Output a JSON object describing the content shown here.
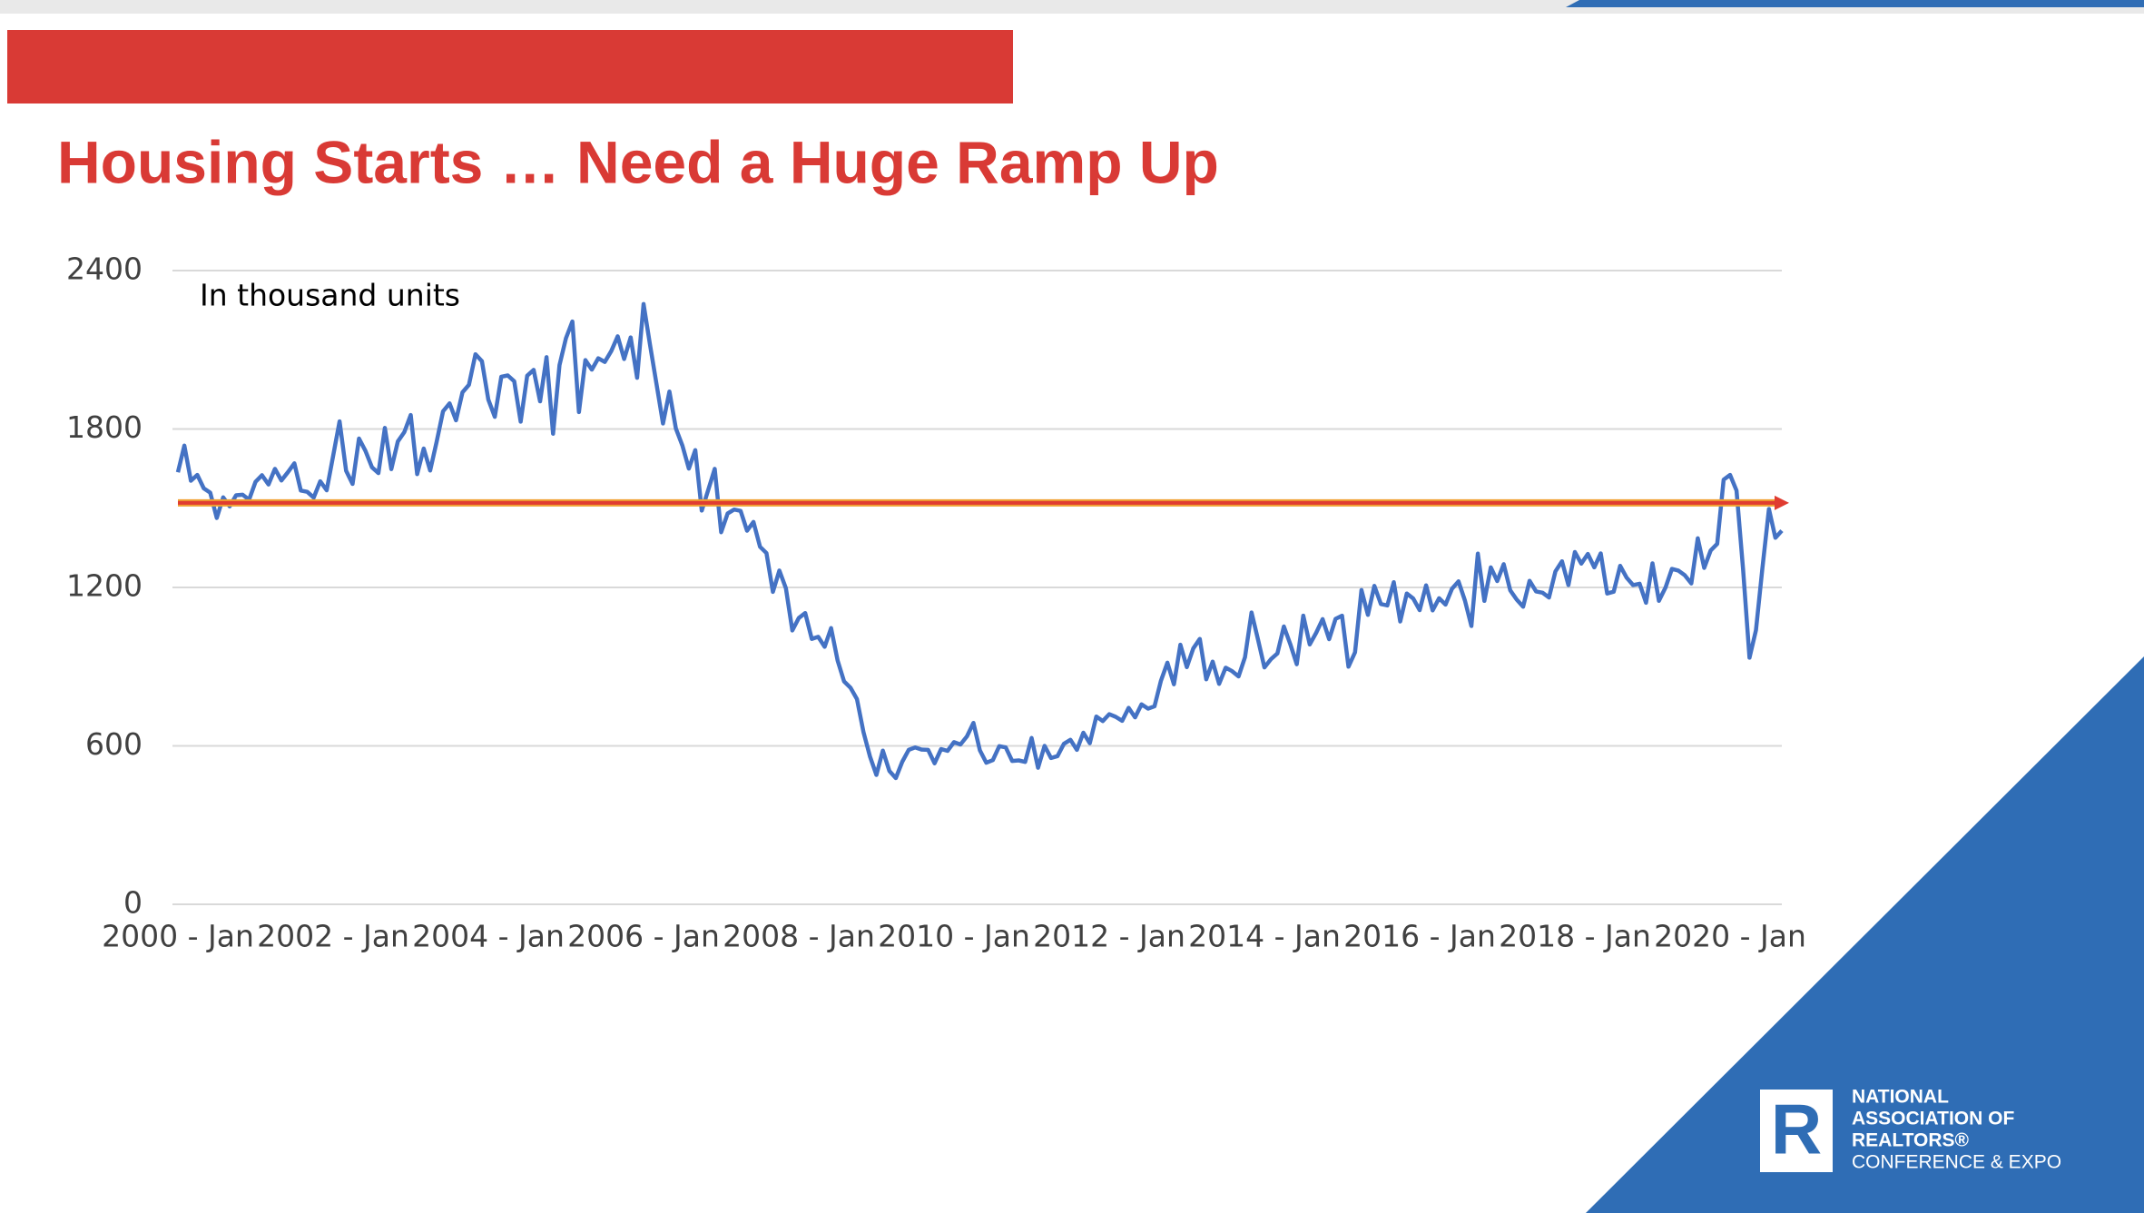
{
  "slide_title": "Housing Starts … Need a Huge Ramp Up",
  "chart_data": {
    "type": "line",
    "annotation": "In thousand units",
    "categories": [
      "2000 - Jan",
      null,
      null,
      null,
      null,
      null,
      null,
      null,
      null,
      null,
      null,
      null,
      null,
      null,
      null,
      null,
      null,
      null,
      null,
      null,
      null,
      null,
      null,
      null,
      "2002 - Jan",
      null,
      null,
      null,
      null,
      null,
      null,
      null,
      null,
      null,
      null,
      null,
      null,
      null,
      null,
      null,
      null,
      null,
      null,
      null,
      null,
      null,
      null,
      null,
      "2004 - Jan",
      null,
      null,
      null,
      null,
      null,
      null,
      null,
      null,
      null,
      null,
      null,
      null,
      null,
      null,
      null,
      null,
      null,
      null,
      null,
      null,
      null,
      null,
      null,
      "2006 - Jan",
      null,
      null,
      null,
      null,
      null,
      null,
      null,
      null,
      null,
      null,
      null,
      null,
      null,
      null,
      null,
      null,
      null,
      null,
      null,
      null,
      null,
      null,
      null,
      "2008 - Jan",
      null,
      null,
      null,
      null,
      null,
      null,
      null,
      null,
      null,
      null,
      null,
      null,
      null,
      null,
      null,
      null,
      null,
      null,
      null,
      null,
      null,
      null,
      null,
      "2010 - Jan",
      null,
      null,
      null,
      null,
      null,
      null,
      null,
      null,
      null,
      null,
      null,
      null,
      null,
      null,
      null,
      null,
      null,
      null,
      null,
      null,
      null,
      null,
      null,
      "2012 - Jan",
      null,
      null,
      null,
      null,
      null,
      null,
      null,
      null,
      null,
      null,
      null,
      null,
      null,
      null,
      null,
      null,
      null,
      null,
      null,
      null,
      null,
      null,
      null,
      "2014 - Jan",
      null,
      null,
      null,
      null,
      null,
      null,
      null,
      null,
      null,
      null,
      null,
      null,
      null,
      null,
      null,
      null,
      null,
      null,
      null,
      null,
      null,
      null,
      null,
      "2016 - Jan",
      null,
      null,
      null,
      null,
      null,
      null,
      null,
      null,
      null,
      null,
      null,
      null,
      null,
      null,
      null,
      null,
      null,
      null,
      null,
      null,
      null,
      null,
      null,
      "2018 - Jan",
      null,
      null,
      null,
      null,
      null,
      null,
      null,
      null,
      null,
      null,
      null,
      null,
      null,
      null,
      null,
      null,
      null,
      null,
      null,
      null,
      null,
      null,
      null,
      "2020 - Jan",
      null,
      null,
      null,
      null,
      null,
      null,
      null,
      null
    ],
    "series": [
      {
        "color": "#4472c4",
        "values": [
          1636,
          1737,
          1604,
          1626,
          1575,
          1559,
          1463,
          1541,
          1507,
          1549,
          1551,
          1532,
          1600,
          1625,
          1590,
          1649,
          1605,
          1636,
          1670,
          1567,
          1562,
          1540,
          1602,
          1568,
          1698,
          1829,
          1642,
          1592,
          1764,
          1717,
          1655,
          1633,
          1804,
          1648,
          1753,
          1788,
          1853,
          1629,
          1726,
          1643,
          1751,
          1867,
          1897,
          1833,
          1939,
          1967,
          2083,
          2057,
          1911,
          1846,
          1998,
          2003,
          1981,
          1828,
          2002,
          2024,
          1905,
          2072,
          1782,
          2042,
          2144,
          2207,
          1864,
          2061,
          2025,
          2068,
          2054,
          2095,
          2151,
          2065,
          2147,
          1994,
          2273,
          2119,
          1969,
          1821,
          1942,
          1802,
          1737,
          1650,
          1720,
          1491,
          1570,
          1649,
          1409,
          1480,
          1495,
          1490,
          1415,
          1448,
          1354,
          1330,
          1183,
          1264,
          1197,
          1037,
          1084,
          1103,
          1005,
          1013,
          975,
          1046,
          923,
          844,
          820,
          777,
          652,
          560,
          490,
          582,
          505,
          478,
          540,
          585,
          594,
          586,
          585,
          534,
          588,
          581,
          614,
          605,
          636,
          687,
          583,
          536,
          546,
          599,
          594,
          543,
          545,
          539,
          630,
          517,
          600,
          554,
          561,
          608,
          623,
          585,
          650,
          610,
          711,
          694,
          720,
          710,
          695,
          744,
          708,
          757,
          741,
          750,
          847,
          915,
          833,
          983,
          898,
          969,
          1005,
          852,
          919,
          835,
          896,
          883,
          863,
          936,
          1105,
          1003,
          897,
          928,
          950,
          1052,
          985,
          909,
          1093,
          984,
          1028,
          1080,
          1004,
          1081,
          1093,
          900,
          954,
          1190,
          1096,
          1206,
          1137,
          1132,
          1220,
          1071,
          1177,
          1158,
          1114,
          1208,
          1113,
          1159,
          1135,
          1195,
          1223,
          1150,
          1054,
          1328,
          1149,
          1276,
          1224,
          1288,
          1189,
          1154,
          1127,
          1225,
          1185,
          1180,
          1162,
          1261,
          1299,
          1209,
          1334,
          1290,
          1327,
          1276,
          1329,
          1177,
          1184,
          1282,
          1237,
          1209,
          1214,
          1142,
          1291,
          1149,
          1199,
          1270,
          1264,
          1246,
          1215,
          1386,
          1274,
          1340,
          1365,
          1608,
          1626,
          1567,
          1269,
          934,
          1038,
          1273,
          1497,
          1388,
          1415
        ]
      }
    ],
    "reference_line": {
      "value": 1520,
      "color": "#e03c31"
    },
    "ylim": [
      0,
      2400
    ],
    "yticks": [
      0,
      600,
      1200,
      1800,
      2400
    ],
    "grid": true
  },
  "logo": {
    "lines": [
      "NATIONAL",
      "ASSOCIATION OF",
      "REALTORS®",
      "CONFERENCE & EXPO"
    ]
  }
}
